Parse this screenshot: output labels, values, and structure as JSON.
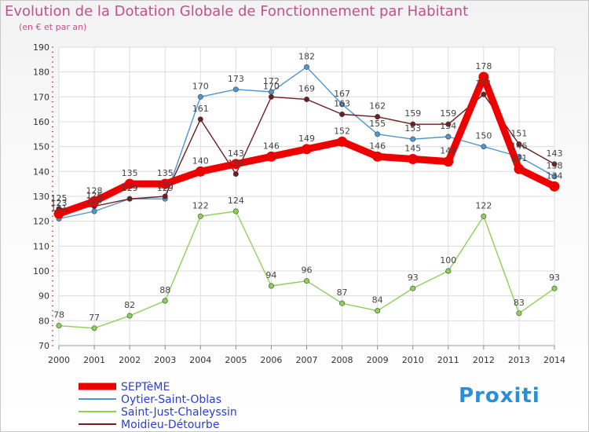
{
  "chart_data": {
    "type": "line",
    "title": "Evolution de la Dotation Globale de Fonctionnement par Habitant",
    "subtitle": "(en € et par an)",
    "xlabel": "",
    "ylabel": "",
    "x": [
      "2000",
      "2001",
      "2002",
      "2003",
      "2004",
      "2005",
      "2006",
      "2007",
      "2008",
      "2009",
      "2010",
      "2011",
      "2012",
      "2013",
      "2014"
    ],
    "ylim": [
      70,
      190
    ],
    "yticks": [
      "70",
      "80",
      "90",
      "100",
      "110",
      "120",
      "130",
      "140",
      "150",
      "160",
      "170",
      "180",
      "190"
    ],
    "grid": true,
    "legend_position": "bottom-left",
    "series": [
      {
        "name": "SEPTèME",
        "color": "#ee0000",
        "values": [
          123,
          128,
          135,
          135,
          140,
          143,
          146,
          149,
          152,
          146,
          145,
          144,
          178,
          141,
          134
        ]
      },
      {
        "name": "Oytier-Saint-Oblas",
        "color": "#4f95cf",
        "values": [
          121,
          124,
          129,
          129,
          170,
          173,
          172,
          182,
          167,
          155,
          153,
          154,
          150,
          146,
          138
        ]
      },
      {
        "name": "Saint-Just-Chaleyssin",
        "color": "#8dd058",
        "values": [
          78,
          77,
          82,
          88,
          122,
          124,
          94,
          96,
          87,
          84,
          93,
          100,
          122,
          83,
          93
        ]
      },
      {
        "name": "Moidieu-Détourbe",
        "color": "#6e1d20",
        "values": [
          125,
          126,
          129,
          130,
          161,
          139,
          170,
          169,
          163,
          162,
          159,
          159,
          171,
          151,
          143
        ]
      }
    ]
  },
  "brand": {
    "text": "Proxiti"
  }
}
